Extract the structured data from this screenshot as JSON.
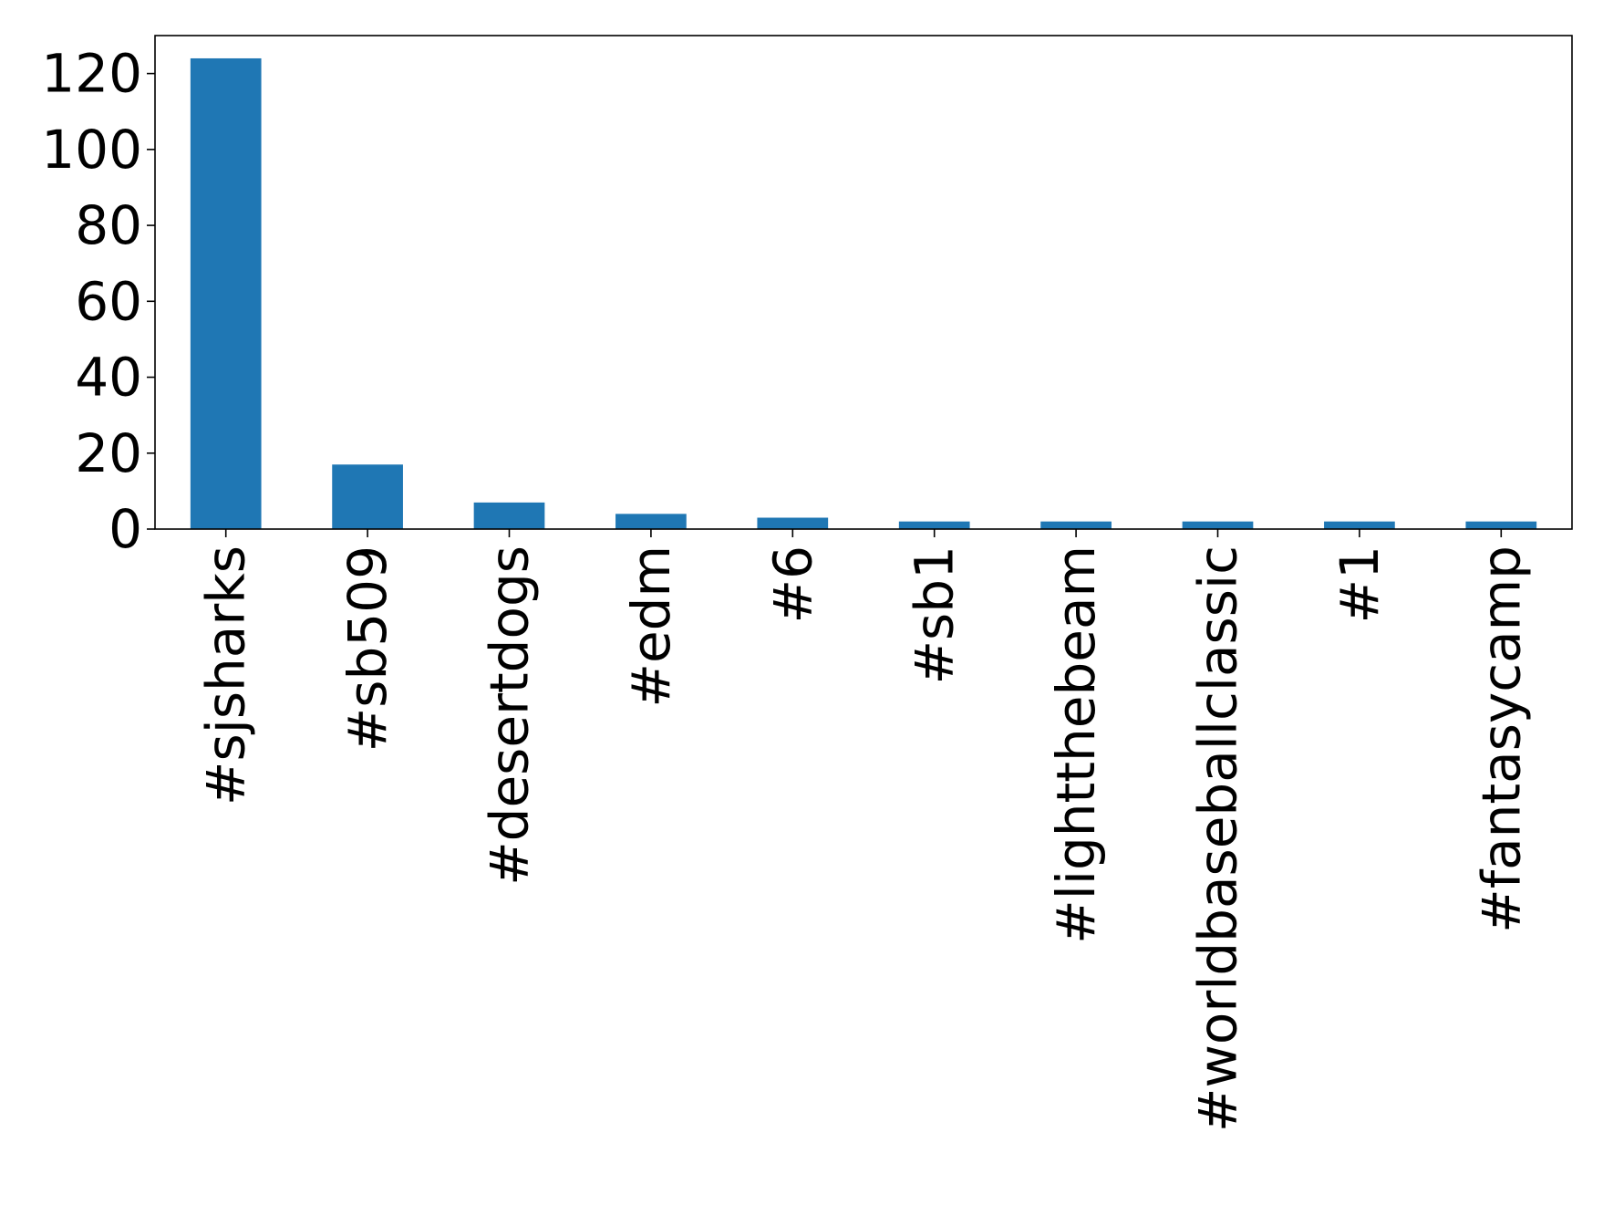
{
  "chart_data": {
    "type": "bar",
    "title": "",
    "xlabel": "",
    "ylabel": "",
    "categories": [
      "#sjsharks",
      "#sb509",
      "#desertdogs",
      "#edm",
      "#6",
      "#sb1",
      "#lightthebeam",
      "#worldbaseballclassic",
      "#1",
      "#fantasycamp"
    ],
    "values": [
      124,
      17,
      7,
      4,
      3,
      2,
      2,
      2,
      2,
      2
    ],
    "ylim": [
      0,
      130
    ],
    "yticks": [
      0,
      20,
      40,
      60,
      80,
      100,
      120
    ],
    "grid": false,
    "legend": "none",
    "colors": {
      "bar": "#1f77b4",
      "axes": "#000000",
      "background": "#ffffff"
    }
  }
}
